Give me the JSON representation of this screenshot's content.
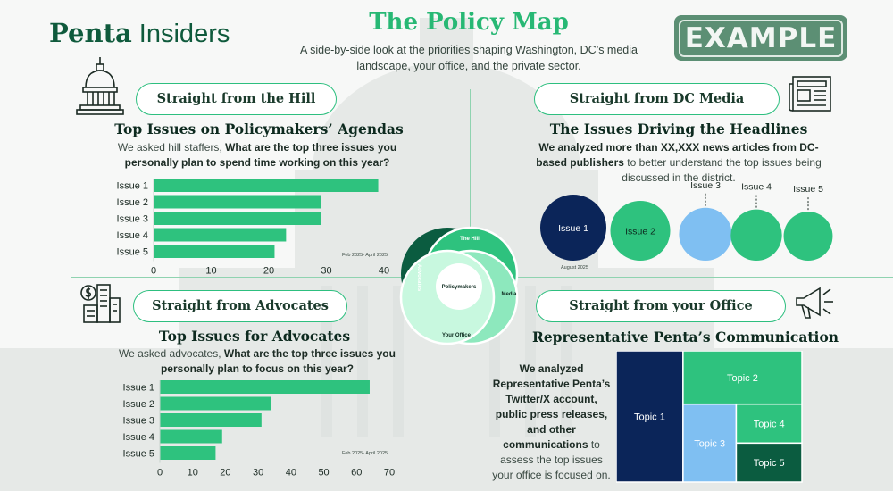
{
  "brand": {
    "name_bold": "Penta",
    "name_light": " Insiders"
  },
  "header": {
    "title": "The Policy Map",
    "subtitle": "A side-by-side look at the priorities shaping Washington, DC’s media landscape, your office, and the private sector."
  },
  "stamp": {
    "text": "EXAMPLE"
  },
  "colors": {
    "green": "#2ec27e",
    "navy": "#0b2559",
    "light_blue": "#7fbff2",
    "dark_green": "#0b5c40",
    "mint": "#b9f5d6",
    "pill_border": "#2dbf7f"
  },
  "icons": [
    "capitol-icon",
    "newspaper-icon",
    "buildings-dollar-icon",
    "megaphone-icon"
  ],
  "hill": {
    "pill": "Straight from the Hill",
    "title": "Top Issues on Policymakers’ Agendas",
    "desc_plain": "We asked hill staffers, ",
    "desc_bold": "What are the top three issues you personally plan to spend time working on this year?",
    "note": "Feb 2025- April 2025"
  },
  "media": {
    "pill": "Straight from DC Media",
    "title": "The Issues Driving the Headlines",
    "desc_bold": "We analyzed more than XX,XXX news articles from DC-based publishers",
    "desc_plain": " to better understand the top issues being discussed in the district.",
    "note": "August 2025"
  },
  "advocates": {
    "pill": "Straight from Advocates",
    "title": "Top Issues for Advocates",
    "desc_plain": "We asked advocates, ",
    "desc_bold": "What are the top three issues you personally plan to focus on this year?",
    "note": "Feb 2025- April 2025"
  },
  "office": {
    "pill": "Straight from your Office",
    "title": "Representative Penta’s Communication",
    "desc_bold_1": "We analyzed Representative Penta’s Twitter/X account, public press releases, and other communications",
    "desc_plain": " to assess the top issues your office is focused on."
  },
  "venn": {
    "center": "Policymakers",
    "labels": [
      "The Hill",
      "Media",
      "Your Office",
      "Advocates"
    ]
  },
  "chart_data": [
    {
      "type": "bar",
      "orientation": "horizontal",
      "categories": [
        "Issue 1",
        "Issue 2",
        "Issue 3",
        "Issue 4",
        "Issue 5"
      ],
      "values": [
        39,
        29,
        29,
        23,
        21
      ],
      "xlim": [
        0,
        40
      ],
      "xticks": [
        "0",
        "10",
        "20",
        "30",
        "40"
      ],
      "color": "#2ec27e"
    },
    {
      "type": "bubble",
      "categories": [
        "Issue 1",
        "Issue 2",
        "Issue 3",
        "Issue 4",
        "Issue 5"
      ],
      "values": [
        100,
        82,
        64,
        60,
        55
      ],
      "colors": [
        "#0b2559",
        "#2ec27e",
        "#7fbff2",
        "#2ec27e",
        "#2ec27e"
      ]
    },
    {
      "type": "bar",
      "orientation": "horizontal",
      "categories": [
        "Issue 1",
        "Issue 2",
        "Issue 3",
        "Issue 4",
        "Issue 5"
      ],
      "values": [
        64,
        34,
        31,
        19,
        17
      ],
      "xlim": [
        0,
        70
      ],
      "xticks": [
        "0",
        "10",
        "20",
        "30",
        "40",
        "50",
        "60",
        "70"
      ],
      "color": "#2ec27e"
    },
    {
      "type": "treemap",
      "categories": [
        "Topic 1",
        "Topic 2",
        "Topic 3",
        "Topic 4",
        "Topic 5"
      ],
      "values": [
        36,
        26,
        17,
        10.5,
        10.5
      ],
      "colors": [
        "#0b2559",
        "#2ec27e",
        "#7fbff2",
        "#2ec27e",
        "#0b5c40"
      ]
    }
  ]
}
